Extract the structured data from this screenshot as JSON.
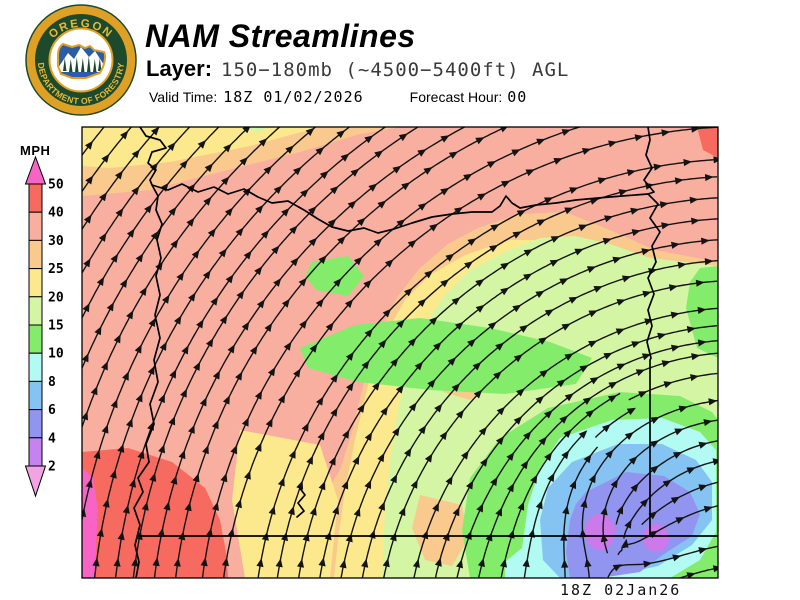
{
  "header": {
    "title": "NAM Streamlines",
    "layer_label": "Layer:",
    "layer_value": "150−180mb (~4500−5400ft) AGL",
    "valid_label": "Valid Time:",
    "valid_value": "18Z 01/02/2026",
    "forecast_label": "Forecast Hour:",
    "forecast_value": "00"
  },
  "logo": {
    "top_text": "OREGON",
    "bottom_text": "DEPARTMENT OF FORESTRY",
    "gold": "#DFA125",
    "dark_green": "#1D4A2C",
    "blue": "#2B5CA8"
  },
  "legend": {
    "title": "MPH",
    "unit": "MPH",
    "boundaries": [
      "50",
      "40",
      "30",
      "25",
      "20",
      "15",
      "10",
      "8",
      "6",
      "4",
      "2"
    ],
    "band_colors": [
      "#F76A60",
      "#F8AFA0",
      "#F9C98D",
      "#FCE98D",
      "#D4F6A4",
      "#84EC6B",
      "#B2FBF3",
      "#85C3F2",
      "#9195EF",
      "#C583EF"
    ],
    "top_arrow_color": "#F863C6",
    "bottom_arrow_color": "#F2A3E3"
  },
  "map": {
    "timestamp": "18Z 02Jan26",
    "palette": {
      "magenta": "#F863C6",
      "red": "#F76A60",
      "salmon": "#F8AFA0",
      "orange": "#F9C98D",
      "yellow": "#FCE98D",
      "ltgreen": "#D4F6A4",
      "green": "#84EC6B",
      "cyan": "#B2FBF3",
      "ltblue": "#85C3F2",
      "bluevio": "#9195EF",
      "violet": "#CC79E9",
      "line": "#141414"
    }
  }
}
